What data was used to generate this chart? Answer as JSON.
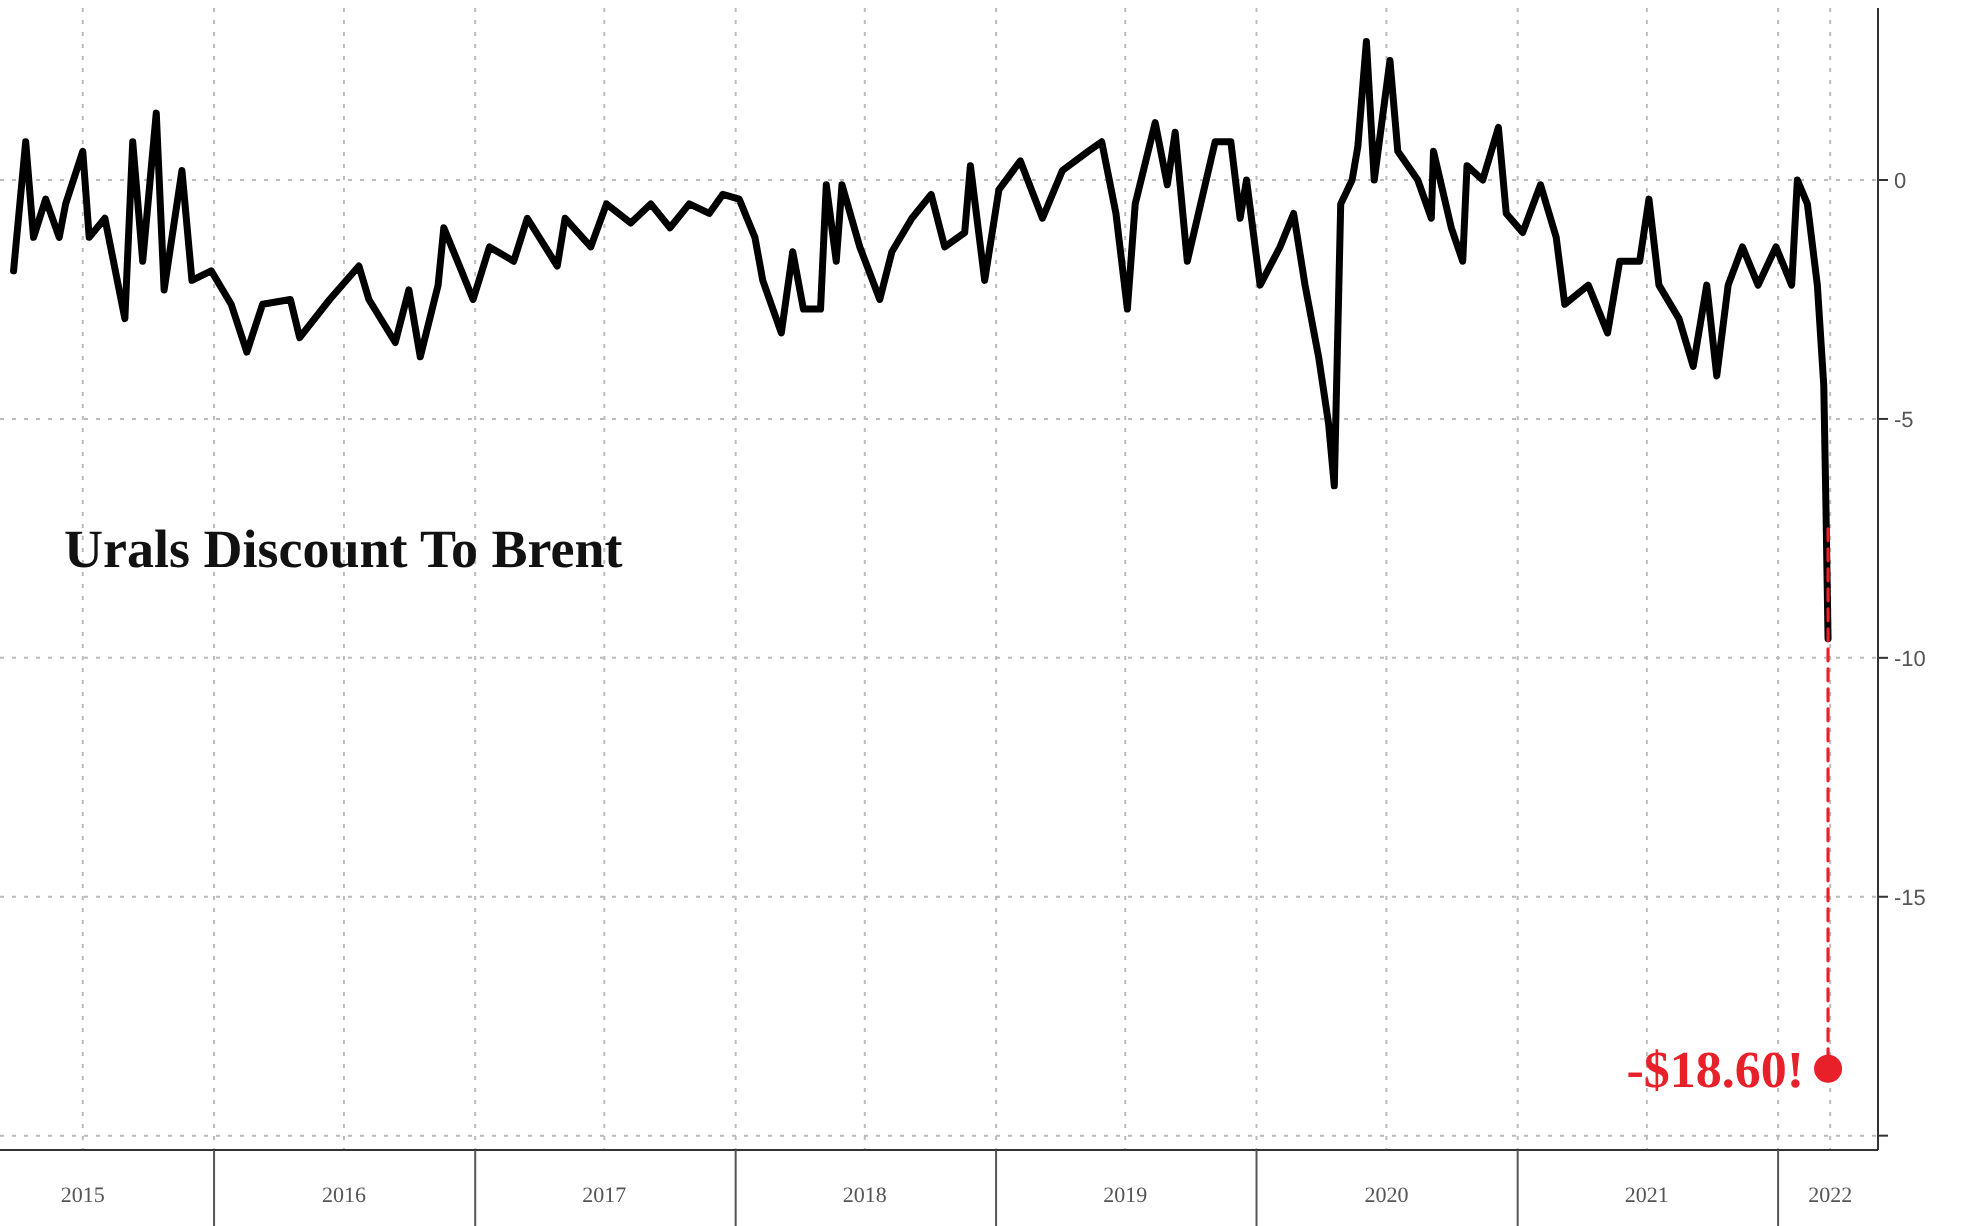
{
  "chart_data": {
    "type": "line",
    "title": "Urals Discount To Brent",
    "xlim": [
      "2015-03-07",
      "2022-05-21"
    ],
    "xticks": [
      {
        "value": "2015-07-01",
        "label": "2015"
      },
      {
        "value": "2016-01-01",
        "label": null
      },
      {
        "value": "2016-07-01",
        "label": "2016"
      },
      {
        "value": "2017-01-01",
        "label": null
      },
      {
        "value": "2017-07-01",
        "label": "2017"
      },
      {
        "value": "2018-01-01",
        "label": null
      },
      {
        "value": "2018-07-01",
        "label": "2018"
      },
      {
        "value": "2019-01-01",
        "label": null
      },
      {
        "value": "2019-07-01",
        "label": "2019"
      },
      {
        "value": "2020-01-01",
        "label": null
      },
      {
        "value": "2020-07-01",
        "label": "2020"
      },
      {
        "value": "2021-01-01",
        "label": null
      },
      {
        "value": "2021-07-01",
        "label": "2021"
      },
      {
        "value": "2022-01-01",
        "label": null
      },
      {
        "value": "2022-03-15",
        "label": "2022"
      }
    ],
    "ylim": [
      -20.3,
      3.6
    ],
    "yticks": [
      0,
      -5,
      -10,
      -15,
      {
        "value": -20,
        "label": null
      }
    ],
    "grid": true,
    "series": [
      {
        "color": "#000000",
        "line_style": "solid",
        "x": [
          "2015-03-26",
          "2015-04-12",
          "2015-04-23",
          "2015-05-10",
          "2015-05-29",
          "2015-06-07",
          "2015-07-01",
          "2015-07-10",
          "2015-08-01",
          "2015-08-29",
          "2015-09-09",
          "2015-09-23",
          "2015-10-12",
          "2015-10-23",
          "2015-11-17",
          "2015-12-01",
          "2015-12-28",
          "2016-01-25",
          "2016-02-16",
          "2016-03-09",
          "2016-04-17",
          "2016-04-30",
          "2016-06-11",
          "2016-07-22",
          "2016-08-05",
          "2016-09-11",
          "2016-09-30",
          "2016-10-16",
          "2016-11-10",
          "2016-11-18",
          "2016-12-10",
          "2016-12-29",
          "2017-01-21",
          "2017-02-24",
          "2017-03-15",
          "2017-04-26",
          "2017-05-07",
          "2017-06-12",
          "2017-07-04",
          "2017-08-07",
          "2017-09-04",
          "2017-10-01",
          "2017-10-28",
          "2017-11-25",
          "2017-12-14",
          "2018-01-06",
          "2018-01-28",
          "2018-02-08",
          "2018-03-06",
          "2018-03-22",
          "2018-04-06",
          "2018-04-30",
          "2018-05-08",
          "2018-05-22",
          "2018-05-30",
          "2018-06-24",
          "2018-07-22",
          "2018-08-08",
          "2018-09-05",
          "2018-10-02",
          "2018-10-21",
          "2018-11-18",
          "2018-11-26",
          "2018-12-16",
          "2019-01-05",
          "2019-02-04",
          "2019-03-07",
          "2019-04-04",
          "2019-05-10",
          "2019-05-29",
          "2019-06-18",
          "2019-07-04",
          "2019-07-15",
          "2019-08-12",
          "2019-08-29",
          "2019-09-09",
          "2019-09-26",
          "2019-11-04",
          "2019-11-26",
          "2019-12-09",
          "2019-12-18",
          "2020-01-06",
          "2020-02-03",
          "2020-02-22",
          "2020-03-09",
          "2020-03-28",
          "2020-04-11",
          "2020-04-19",
          "2020-04-28",
          "2020-05-14",
          "2020-05-22",
          "2020-06-03",
          "2020-06-14",
          "2020-07-06",
          "2020-07-17",
          "2020-08-14",
          "2020-09-02",
          "2020-09-05",
          "2020-09-30",
          "2020-10-16",
          "2020-10-22",
          "2020-11-13",
          "2020-12-05",
          "2020-12-16",
          "2021-01-08",
          "2021-02-02",
          "2021-02-24",
          "2021-03-08",
          "2021-04-10",
          "2021-05-07",
          "2021-05-24",
          "2021-06-21",
          "2021-07-04",
          "2021-07-18",
          "2021-08-15",
          "2021-09-04",
          "2021-09-23",
          "2021-10-07",
          "2021-10-23",
          "2021-11-12",
          "2021-12-04",
          "2021-12-29",
          "2022-01-20",
          "2022-01-28",
          "2022-02-11",
          "2022-02-25",
          "2022-03-06",
          "2022-03-09",
          "2022-03-12"
        ],
        "values": [
          -1.9,
          0.8,
          -1.2,
          -0.4,
          -1.2,
          -0.5,
          0.6,
          -1.2,
          -0.8,
          -2.9,
          0.8,
          -1.7,
          1.4,
          -2.3,
          0.2,
          -2.1,
          -1.9,
          -2.6,
          -3.6,
          -2.6,
          -2.5,
          -3.3,
          -2.5,
          -1.8,
          -2.5,
          -3.4,
          -2.3,
          -3.7,
          -2.2,
          -1.0,
          -1.8,
          -2.5,
          -1.4,
          -1.7,
          -0.8,
          -1.8,
          -0.8,
          -1.4,
          -0.5,
          -0.9,
          -0.5,
          -1.0,
          -0.5,
          -0.7,
          -0.3,
          -0.4,
          -1.2,
          -2.1,
          -3.2,
          -1.5,
          -2.7,
          -2.7,
          -0.1,
          -1.7,
          -0.1,
          -1.4,
          -2.5,
          -1.5,
          -0.8,
          -0.3,
          -1.4,
          -1.1,
          0.3,
          -2.1,
          -0.2,
          0.4,
          -0.8,
          0.2,
          0.6,
          0.8,
          -0.7,
          -2.7,
          -0.5,
          1.2,
          -0.1,
          1.0,
          -1.7,
          0.8,
          0.8,
          -0.8,
          0.0,
          -2.2,
          -1.4,
          -0.7,
          -2.2,
          -3.7,
          -5.1,
          -6.4,
          -0.5,
          0.0,
          0.7,
          2.9,
          0.0,
          2.5,
          0.6,
          0.0,
          -0.8,
          0.6,
          -1.0,
          -1.7,
          0.3,
          0.0,
          1.1,
          -0.7,
          -1.1,
          -0.1,
          -1.2,
          -2.6,
          -2.2,
          -3.2,
          -1.7,
          -1.7,
          -0.4,
          -2.2,
          -2.9,
          -3.9,
          -2.2,
          -4.1,
          -2.2,
          -1.4,
          -2.2,
          -1.4,
          -2.2,
          0.0,
          -0.5,
          -2.2,
          -4.3,
          -6.8,
          -9.6
        ]
      },
      {
        "type": "line",
        "color": "#e8202a",
        "line_style": "dashed",
        "x": [
          "2022-03-12",
          "2022-03-12"
        ],
        "values": [
          -7.3,
          -18.6
        ]
      },
      {
        "type": "scatter",
        "color": "#e8202a",
        "marker": "circle",
        "x": [
          "2022-03-12"
        ],
        "values": [
          -18.6
        ]
      }
    ],
    "annotations": [
      {
        "text": "-$18.60!",
        "x": "2022-03-12",
        "y": -18.6
      }
    ]
  }
}
